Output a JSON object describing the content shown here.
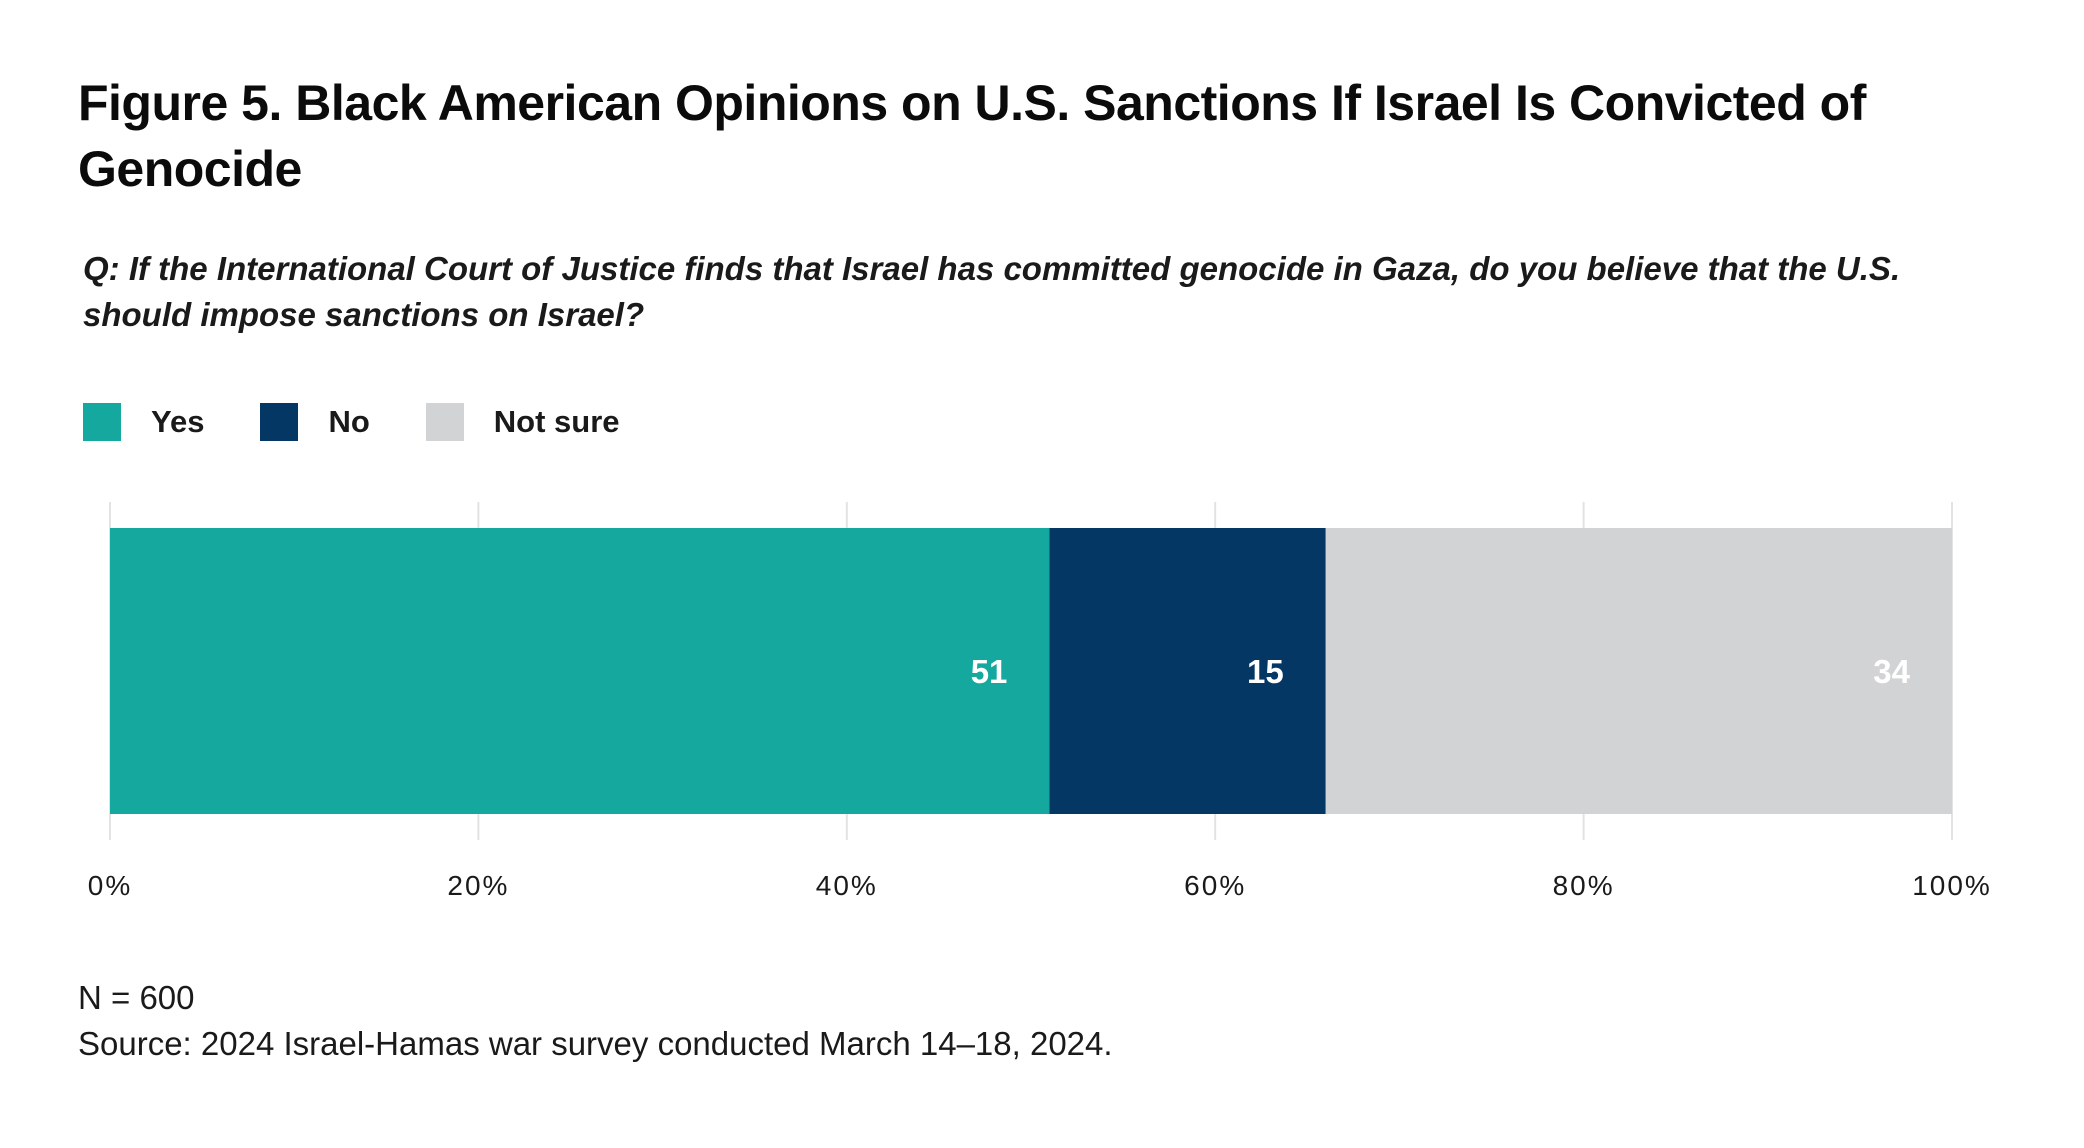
{
  "title": "Figure 5. Black American Opinions on U.S. Sanctions If Israel Is Convicted of Genocide",
  "question": "Q: If the International Court of Justice finds that Israel has committed genocide in Gaza, do you believe that the U.S. should impose sanctions on Israel?",
  "legend": [
    {
      "label": "Yes",
      "color": "#14a89f"
    },
    {
      "label": "No",
      "color": "#043764"
    },
    {
      "label": "Not sure",
      "color": "#d1d3d4"
    }
  ],
  "footer": {
    "n": "N = 600",
    "source": "Source: 2024 Israel-Hamas war survey conducted March 14–18, 2024."
  },
  "chart_data": {
    "type": "bar",
    "orientation": "horizontal",
    "stacked": true,
    "categories": [
      ""
    ],
    "series": [
      {
        "name": "Yes",
        "values": [
          51
        ],
        "color": "#14a89f",
        "label_color": "#ffffff"
      },
      {
        "name": "No",
        "values": [
          15
        ],
        "color": "#043764",
        "label_color": "#ffffff"
      },
      {
        "name": "Not sure",
        "values": [
          34
        ],
        "color": "#d1d3d4",
        "label_color": "#ffffff"
      }
    ],
    "xlim": [
      0,
      100
    ],
    "xticks": [
      0,
      20,
      40,
      60,
      80,
      100
    ],
    "xtick_labels": [
      "0%",
      "20%",
      "40%",
      "60%",
      "80%",
      "100%"
    ],
    "grid": "vertical",
    "legend_position": "top-left",
    "xlabel": "",
    "ylabel": ""
  }
}
